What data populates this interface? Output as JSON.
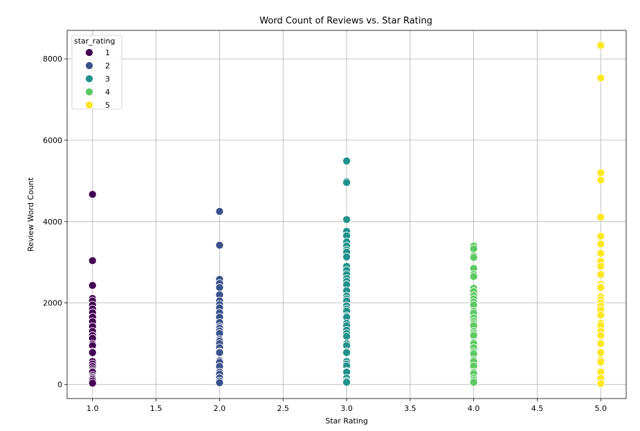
{
  "chart_data": {
    "type": "scatter",
    "title": "Word Count of Reviews vs. Star Rating",
    "xlabel": "Star Rating",
    "ylabel": "Review Word Count",
    "xlim": [
      0.8,
      5.2
    ],
    "ylim": [
      -350,
      8700
    ],
    "xticks": [
      1.0,
      1.5,
      2.0,
      2.5,
      3.0,
      3.5,
      4.0,
      4.5,
      5.0
    ],
    "xtick_labels": [
      "1.0",
      "1.5",
      "2.0",
      "2.5",
      "3.0",
      "3.5",
      "4.0",
      "4.5",
      "5.0"
    ],
    "yticks": [
      0,
      2000,
      4000,
      6000,
      8000
    ],
    "ytick_labels": [
      "0",
      "2000",
      "4000",
      "6000",
      "8000"
    ],
    "grid": true,
    "legend": {
      "title": "star_rating",
      "location": "top-left",
      "entries": [
        "1",
        "2",
        "3",
        "4",
        "5"
      ]
    },
    "series": [
      {
        "name": "1",
        "color": "#440154",
        "x": 1.0,
        "values": [
          4670,
          3040,
          2430,
          2110,
          2050,
          1950,
          1850,
          1760,
          1650,
          1540,
          1420,
          1300,
          1200,
          1130,
          990,
          950,
          800,
          780,
          560,
          500,
          440,
          380,
          330,
          300,
          220,
          180,
          150,
          120,
          80,
          30
        ]
      },
      {
        "name": "2",
        "color": "#3b528b",
        "x": 2.0,
        "values": [
          4250,
          3420,
          2580,
          2480,
          2380,
          2200,
          2050,
          1960,
          1880,
          1760,
          1650,
          1520,
          1420,
          1380,
          1310,
          1250,
          1100,
          1060,
          1000,
          900,
          800,
          780,
          580,
          540,
          440,
          300,
          250,
          160,
          80,
          40
        ]
      },
      {
        "name": "3",
        "color": "#21918c",
        "x": 3.0,
        "values": [
          5490,
          4990,
          4960,
          4050,
          3760,
          3650,
          3500,
          3400,
          3300,
          3250,
          3130,
          2900,
          2800,
          2700,
          2600,
          2530,
          2450,
          2300,
          2170,
          2100,
          2050,
          1930,
          1850,
          1800,
          1680,
          1650,
          1500,
          1440,
          1330,
          1250,
          1180,
          1000,
          950,
          800,
          780,
          560,
          500,
          450,
          320,
          300,
          150,
          80,
          50
        ]
      },
      {
        "name": "4",
        "color": "#5ec962",
        "x": 4.0,
        "values": [
          3400,
          3330,
          3160,
          3120,
          2850,
          2700,
          2650,
          2360,
          2280,
          2180,
          2100,
          2020,
          1950,
          1800,
          1750,
          1630,
          1550,
          1490,
          1440,
          1300,
          1250,
          1200,
          1030,
          1000,
          900,
          800,
          750,
          600,
          560,
          450,
          300,
          260,
          150,
          100,
          50
        ]
      },
      {
        "name": "5",
        "color": "#fde725",
        "x": 5.0,
        "values": [
          8330,
          7530,
          5200,
          5020,
          4110,
          3640,
          3450,
          3220,
          3020,
          2900,
          2700,
          2460,
          2400,
          2380,
          2150,
          2080,
          2000,
          1920,
          1830,
          1700,
          1500,
          1440,
          1300,
          1200,
          1020,
          1000,
          800,
          780,
          600,
          550,
          320,
          300,
          150,
          20
        ]
      }
    ]
  }
}
